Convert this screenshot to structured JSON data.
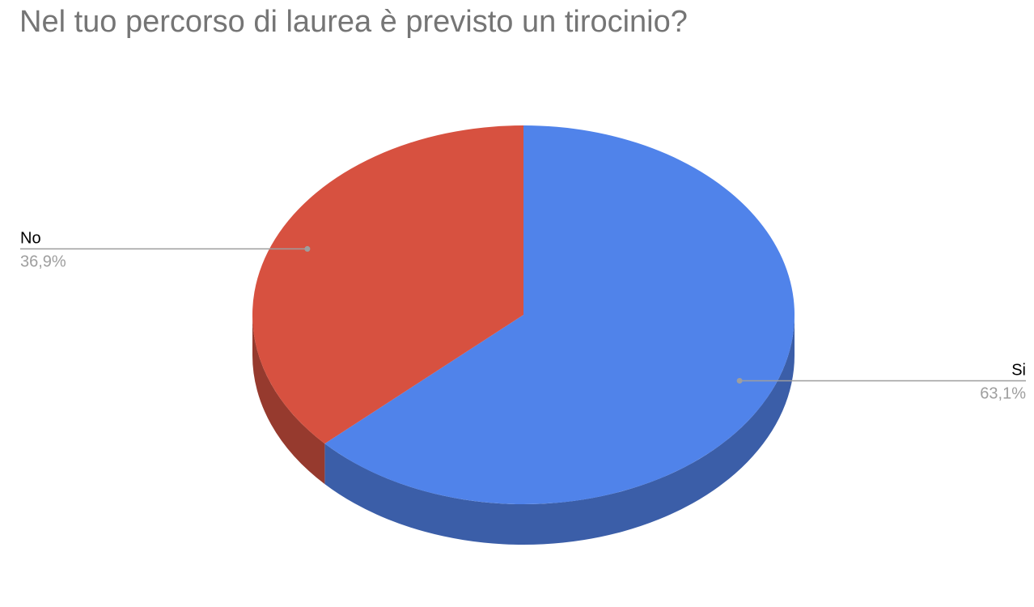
{
  "chart_data": {
    "type": "pie",
    "title": "Nel tuo percorso di laurea è previsto un tirocinio?",
    "slices": [
      {
        "label": "Si",
        "value": 63.1,
        "value_label": "63,1%",
        "color": "#5083EA",
        "side_color": "#3B5EA8"
      },
      {
        "label": "No",
        "value": 36.9,
        "value_label": "36,9%",
        "color": "#D75140",
        "side_color": "#963A2E"
      }
    ],
    "start": "top",
    "direction": "clockwise",
    "style": "3d",
    "legend": "none",
    "label_color": "#000000",
    "value_label_color": "#9E9E9E",
    "leader_color": "#9E9E9E"
  }
}
